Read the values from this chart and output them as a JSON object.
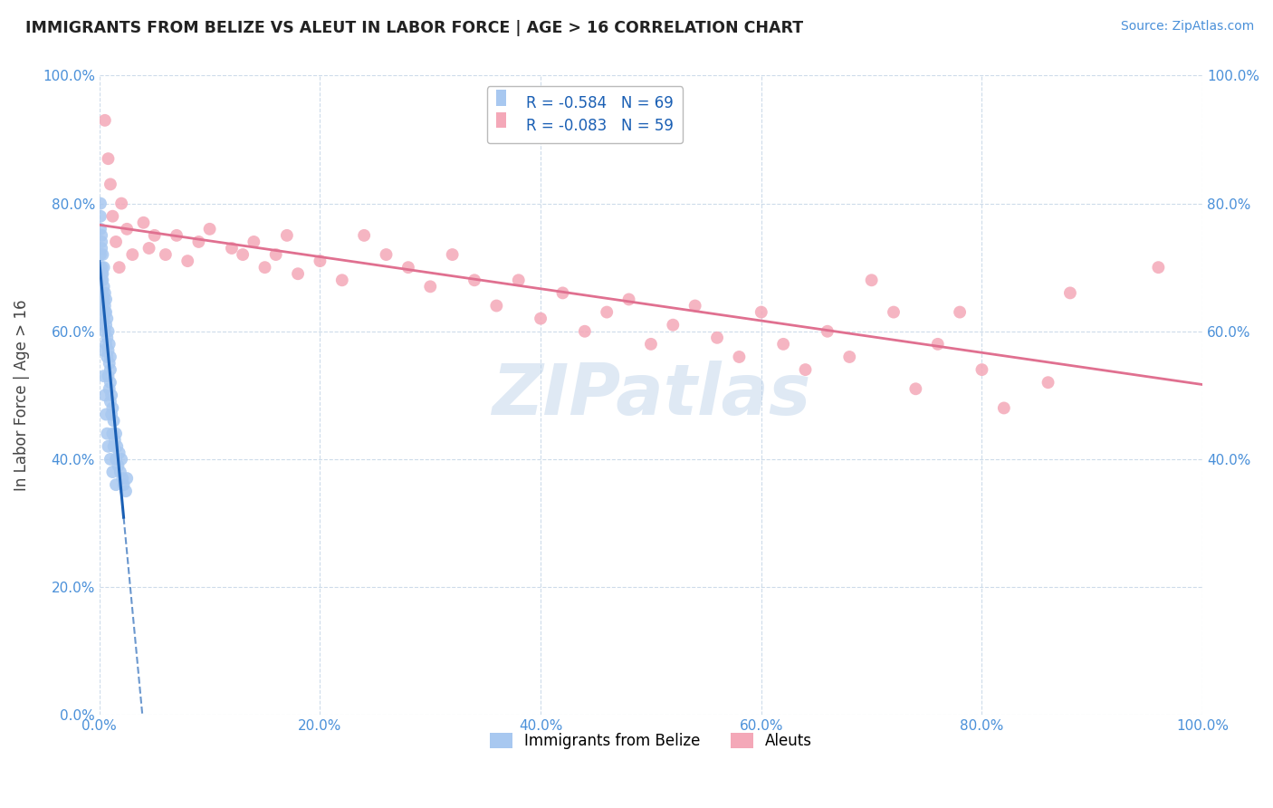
{
  "title": "IMMIGRANTS FROM BELIZE VS ALEUT IN LABOR FORCE | AGE > 16 CORRELATION CHART",
  "source_text": "Source: ZipAtlas.com",
  "ylabel": "In Labor Force | Age > 16",
  "legend_bottom": [
    "Immigrants from Belize",
    "Aleuts"
  ],
  "series1_R": -0.584,
  "series1_N": 69,
  "series2_R": -0.083,
  "series2_N": 59,
  "series1_color": "#a8c8f0",
  "series2_color": "#f4a8b8",
  "series1_line_color": "#1a5fb4",
  "series2_line_color": "#e07090",
  "background_color": "#ffffff",
  "grid_color": "#c8d8e8",
  "watermark": "ZIPatlas",
  "x_min": 0.0,
  "x_max": 1.0,
  "y_min": 0.0,
  "y_max": 1.0,
  "series1_x": [
    0.001,
    0.001,
    0.002,
    0.002,
    0.002,
    0.002,
    0.003,
    0.003,
    0.003,
    0.003,
    0.003,
    0.004,
    0.004,
    0.004,
    0.004,
    0.005,
    0.005,
    0.005,
    0.005,
    0.006,
    0.006,
    0.006,
    0.006,
    0.007,
    0.007,
    0.007,
    0.008,
    0.008,
    0.008,
    0.009,
    0.009,
    0.009,
    0.01,
    0.01,
    0.01,
    0.01,
    0.011,
    0.011,
    0.012,
    0.012,
    0.013,
    0.013,
    0.014,
    0.015,
    0.015,
    0.016,
    0.017,
    0.018,
    0.019,
    0.02,
    0.021,
    0.022,
    0.024,
    0.025,
    0.001,
    0.001,
    0.002,
    0.002,
    0.003,
    0.003,
    0.004,
    0.004,
    0.005,
    0.006,
    0.007,
    0.008,
    0.01,
    0.012,
    0.015
  ],
  "series1_y": [
    0.72,
    0.78,
    0.7,
    0.74,
    0.68,
    0.75,
    0.66,
    0.69,
    0.72,
    0.64,
    0.68,
    0.65,
    0.67,
    0.62,
    0.7,
    0.63,
    0.66,
    0.6,
    0.64,
    0.61,
    0.58,
    0.63,
    0.65,
    0.59,
    0.62,
    0.56,
    0.57,
    0.6,
    0.53,
    0.55,
    0.58,
    0.51,
    0.52,
    0.56,
    0.49,
    0.54,
    0.5,
    0.47,
    0.48,
    0.44,
    0.46,
    0.42,
    0.43,
    0.44,
    0.4,
    0.42,
    0.39,
    0.41,
    0.38,
    0.4,
    0.37,
    0.36,
    0.35,
    0.37,
    0.8,
    0.76,
    0.73,
    0.69,
    0.65,
    0.61,
    0.57,
    0.53,
    0.5,
    0.47,
    0.44,
    0.42,
    0.4,
    0.38,
    0.36
  ],
  "series2_x": [
    0.005,
    0.008,
    0.01,
    0.012,
    0.015,
    0.018,
    0.02,
    0.025,
    0.03,
    0.04,
    0.045,
    0.05,
    0.06,
    0.07,
    0.08,
    0.09,
    0.1,
    0.12,
    0.13,
    0.14,
    0.15,
    0.16,
    0.17,
    0.18,
    0.2,
    0.22,
    0.24,
    0.26,
    0.28,
    0.3,
    0.32,
    0.34,
    0.36,
    0.38,
    0.4,
    0.42,
    0.44,
    0.46,
    0.48,
    0.5,
    0.52,
    0.54,
    0.56,
    0.58,
    0.6,
    0.62,
    0.64,
    0.66,
    0.68,
    0.7,
    0.72,
    0.74,
    0.76,
    0.78,
    0.8,
    0.82,
    0.86,
    0.88,
    0.96
  ],
  "series2_y": [
    0.93,
    0.87,
    0.83,
    0.78,
    0.74,
    0.7,
    0.8,
    0.76,
    0.72,
    0.77,
    0.73,
    0.75,
    0.72,
    0.75,
    0.71,
    0.74,
    0.76,
    0.73,
    0.72,
    0.74,
    0.7,
    0.72,
    0.75,
    0.69,
    0.71,
    0.68,
    0.75,
    0.72,
    0.7,
    0.67,
    0.72,
    0.68,
    0.64,
    0.68,
    0.62,
    0.66,
    0.6,
    0.63,
    0.65,
    0.58,
    0.61,
    0.64,
    0.59,
    0.56,
    0.63,
    0.58,
    0.54,
    0.6,
    0.56,
    0.68,
    0.63,
    0.51,
    0.58,
    0.63,
    0.54,
    0.48,
    0.52,
    0.66,
    0.7
  ],
  "yticks": [
    0.0,
    0.2,
    0.4,
    0.6,
    0.8,
    1.0
  ],
  "xticks": [
    0.0,
    0.2,
    0.4,
    0.6,
    0.8,
    1.0
  ],
  "right_yticks": [
    0.4,
    0.6,
    0.8,
    1.0
  ],
  "right_ytick_labels": [
    "40.0%",
    "60.0%",
    "80.0%",
    "100.0%"
  ]
}
